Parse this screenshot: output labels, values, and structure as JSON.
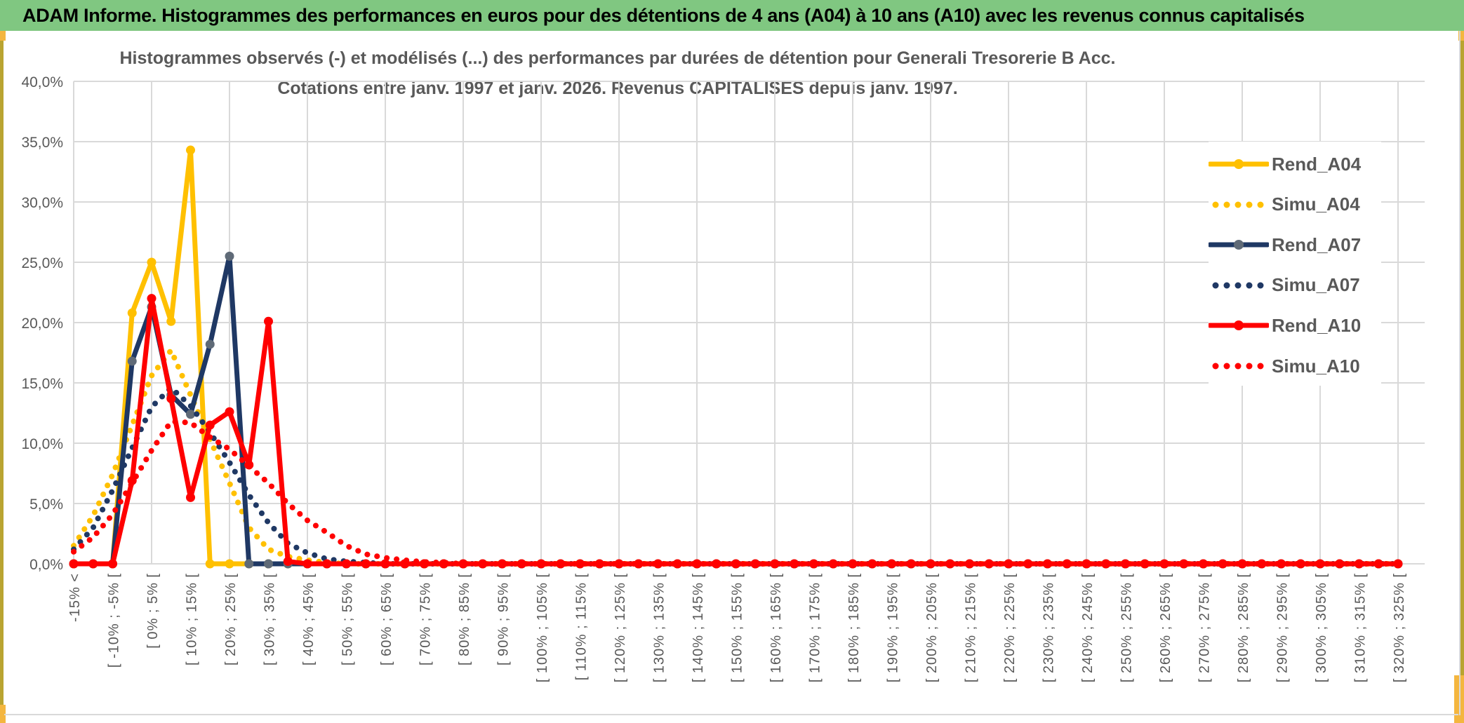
{
  "header": {
    "title": "ADAM Informe. Histogrammes des performances en euros pour des détentions de 4 ans (A04) à 10 ans (A10) avec les revenus connus capitalisés"
  },
  "chart_data": {
    "type": "line",
    "title_line1": "Histogrammes observés (-) et modélisés (...) des performances par durées de détention pour Generali Tresorerie B Acc.",
    "title_line2": "Cotations entre janv. 1997 et janv. 2026. Revenus CAPITALISES depuis janv. 1997.",
    "ylim": [
      0,
      40
    ],
    "ytick_step": 5,
    "ytick_labels": [
      "0,0%",
      "5,0%",
      "10,0%",
      "15,0%",
      "20,0%",
      "25,0%",
      "30,0%",
      "35,0%",
      "40,0%"
    ],
    "n_bins": 69,
    "x_label_every": 2,
    "x_labels": [
      "-15% <",
      "[ -10% ; -5% [",
      "[ 0% ; 5% [",
      "[ 10% ; 15% [",
      "[ 20% ; 25% [",
      "[ 30% ; 35% [",
      "[ 40% ; 45% [",
      "[ 50% ; 55% [",
      "[ 60% ; 65% [",
      "[ 70% ; 75% [",
      "[ 80% ; 85% [",
      "[ 90% ; 95% [",
      "[ 100% ; 105% [",
      "[ 110% ; 115% [",
      "[ 120% ; 125% [",
      "[ 130% ; 135% [",
      "[ 140% ; 145% [",
      "[ 150% ; 155% [",
      "[ 160% ; 165% [",
      "[ 170% ; 175% [",
      "[ 180% ; 185% [",
      "[ 190% ; 195% [",
      "[ 200% ; 205% [",
      "[ 210% ; 215% [",
      "[ 220% ; 225% [",
      "[ 230% ; 235% [",
      "[ 240% ; 245% [",
      "[ 250% ; 255% [",
      "[ 260% ; 265% [",
      "[ 270% ; 275% [",
      "[ 280% ; 285% [",
      "[ 290% ; 295% [",
      "[ 300% ; 305% [",
      "[ 310% ; 315% [",
      "[ 320% ; 325% ["
    ],
    "grid_color": "#D9D9D9",
    "legend_position": "right-inside",
    "series": [
      {
        "name": "Rend_A04",
        "color": "#FFC000",
        "marker_color": "#FFC000",
        "style": "solid",
        "values": [
          0,
          0,
          0,
          20.8,
          25,
          20.1,
          34.3
        ]
      },
      {
        "name": "Simu_A04",
        "color": "#FFC000",
        "style": "dotted",
        "values": [
          1.5,
          4,
          7.4,
          11.5,
          15.6,
          17.7,
          14,
          10.3,
          6.7,
          3,
          1.2,
          0.6,
          0.3,
          0.1
        ]
      },
      {
        "name": "Rend_A07",
        "color": "#1F3864",
        "marker_color": "#5F6A77",
        "style": "solid",
        "values": [
          0,
          0,
          0,
          16.8,
          21.3,
          14,
          12.4,
          18.2,
          25.5
        ]
      },
      {
        "name": "Simu_A07",
        "color": "#1F3864",
        "style": "dotted",
        "values": [
          1.2,
          3,
          6.1,
          9.6,
          13,
          14.6,
          13.1,
          10.9,
          8.4,
          5.7,
          3.4,
          1.7,
          0.9,
          0.4,
          0.2,
          0.1
        ]
      },
      {
        "name": "Rend_A10",
        "color": "#FF0000",
        "marker_color": "#FF0000",
        "style": "solid",
        "values": [
          0,
          0,
          0,
          6.9,
          22,
          13.7,
          5.5,
          11.5,
          12.6,
          8.2,
          20.1,
          0.2
        ]
      },
      {
        "name": "Simu_A10",
        "color": "#FF0000",
        "style": "dotted",
        "values": [
          1,
          2.2,
          4.1,
          6.7,
          9.4,
          11.8,
          11.7,
          10.5,
          9.5,
          8.1,
          6.7,
          5,
          3.6,
          2.6,
          1.5,
          0.8,
          0.5,
          0.3,
          0.15,
          0.1
        ]
      }
    ],
    "accent_colors": {
      "header_green": "#80C781",
      "edge_gold": "#F4B63F",
      "text_gray": "#595959"
    }
  }
}
